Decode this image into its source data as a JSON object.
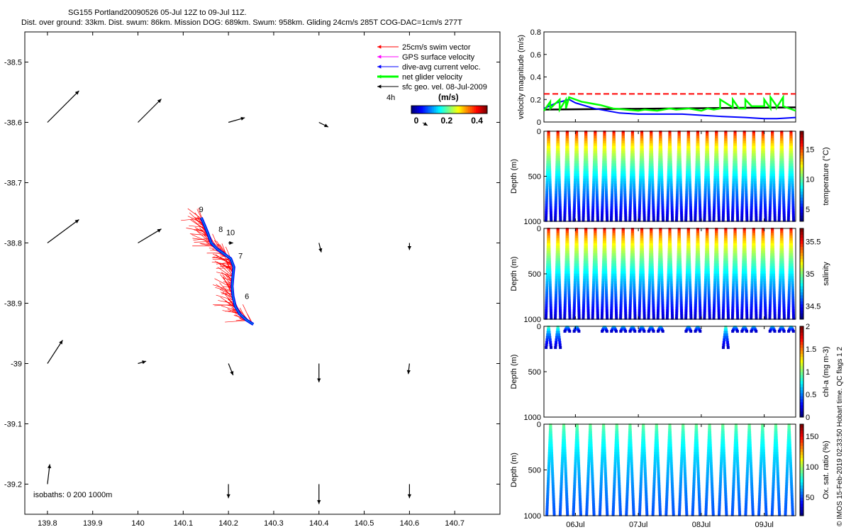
{
  "header": {
    "title": "SG155 Portland20090526 05-Jul 12Z to 09-Jul 11Z.",
    "subtitle": "Dist. over ground: 33km. Dist. swum: 86km. Mission DOG: 689km. Swum: 958km. Gliding 24cm/s 285T COG-DAC=1cm/s 277T"
  },
  "copyright": "© IMOS 15-Feb-2019 02:33:50 Hobart time. QC flags 1  2",
  "colors": {
    "swim": "#ff0000",
    "gps": "#ff00ff",
    "dac": "#0000ff",
    "net": "#00ff00",
    "geo": "#000000",
    "axis": "#000000"
  },
  "chart_data": [
    {
      "type": "scatter",
      "name": "track-map",
      "xlim": [
        139.75,
        140.8
      ],
      "ylim": [
        -39.25,
        -38.45
      ],
      "xticks": [
        139.8,
        139.9,
        140,
        140.1,
        140.2,
        140.3,
        140.4,
        140.5,
        140.6,
        140.7
      ],
      "xticklabels": [
        "139.8",
        "139.9",
        "140",
        "140.1",
        "140.2",
        "140.3",
        "140.4",
        "140.5",
        "140.6",
        "140.7"
      ],
      "yticks": [
        -38.5,
        -38.6,
        -38.7,
        -38.8,
        -38.9,
        -39,
        -39.1,
        -39.2
      ],
      "yticklabels": [
        "-38.5",
        "-38.6",
        "-38.7",
        "-38.8",
        "-38.9",
        "-39",
        "-39.1",
        "-39.2"
      ],
      "legend": {
        "entries": [
          {
            "label": "25cm/s swim vector",
            "color": "#ff0000"
          },
          {
            "label": "GPS surface velocity",
            "color": "#ff00ff"
          },
          {
            "label": "dive-avg current veloc.",
            "color": "#0000ff"
          },
          {
            "label": "net glider velocity",
            "color": "#00ff00"
          },
          {
            "label": "sfc geo. vel. 08-Jul-2009",
            "color": "#000000"
          }
        ],
        "placement": "top-right"
      },
      "time_label": "4h",
      "colorbar": {
        "title": "(m/s)",
        "ticks": [
          "0",
          "0.2",
          "0.4"
        ],
        "range": [
          0,
          0.5
        ]
      },
      "isobaths_text": "isobaths: 0   200  1000m",
      "track": [
        [
          140.255,
          -38.935
        ],
        [
          140.24,
          -38.928
        ],
        [
          140.225,
          -38.918
        ],
        [
          140.215,
          -38.905
        ],
        [
          140.21,
          -38.888
        ],
        [
          140.208,
          -38.872
        ],
        [
          140.21,
          -38.855
        ],
        [
          140.212,
          -38.84
        ],
        [
          140.205,
          -38.826
        ],
        [
          140.19,
          -38.818
        ],
        [
          140.175,
          -38.81
        ],
        [
          140.162,
          -38.8
        ],
        [
          140.155,
          -38.785
        ],
        [
          140.148,
          -38.772
        ],
        [
          140.14,
          -38.758
        ]
      ],
      "day_labels": [
        {
          "text": "6",
          "lon": 140.236,
          "lat": -38.893
        },
        {
          "text": "7",
          "lon": 140.222,
          "lat": -38.826
        },
        {
          "text": "8",
          "lon": 140.178,
          "lat": -38.782
        },
        {
          "text": "9",
          "lon": 140.135,
          "lat": -38.749
        },
        {
          "text": "10",
          "lon": 140.195,
          "lat": -38.787
        }
      ],
      "geo_vectors": [
        {
          "lon": 139.8,
          "lat": -38.6,
          "u": 0.27,
          "v": 0.27
        },
        {
          "lon": 140,
          "lat": -38.6,
          "u": 0.2,
          "v": 0.2
        },
        {
          "lon": 140.2,
          "lat": -38.6,
          "u": 0.14,
          "v": 0.04
        },
        {
          "lon": 140.4,
          "lat": -38.6,
          "u": 0.08,
          "v": -0.04
        },
        {
          "lon": 139.8,
          "lat": -38.8,
          "u": 0.27,
          "v": 0.2
        },
        {
          "lon": 140,
          "lat": -38.8,
          "u": 0.2,
          "v": 0.12
        },
        {
          "lon": 140.2,
          "lat": -38.8,
          "u": 0.04,
          "v": 0
        },
        {
          "lon": 140.4,
          "lat": -38.8,
          "u": 0.02,
          "v": -0.08
        },
        {
          "lon": 140.6,
          "lat": -38.8,
          "u": 0,
          "v": -0.06
        },
        {
          "lon": 139.8,
          "lat": -39.0,
          "u": 0.13,
          "v": 0.2
        },
        {
          "lon": 140,
          "lat": -39.0,
          "u": 0.07,
          "v": 0.02
        },
        {
          "lon": 140.2,
          "lat": -39.0,
          "u": 0.04,
          "v": -0.1
        },
        {
          "lon": 140.4,
          "lat": -39.0,
          "u": 0,
          "v": -0.16
        },
        {
          "lon": 140.6,
          "lat": -39.0,
          "u": -0.01,
          "v": -0.09
        },
        {
          "lon": 139.8,
          "lat": -39.2,
          "u": 0.02,
          "v": 0.17
        },
        {
          "lon": 140.2,
          "lat": -39.2,
          "u": 0,
          "v": -0.12
        },
        {
          "lon": 140.4,
          "lat": -39.2,
          "u": 0,
          "v": -0.17
        },
        {
          "lon": 140.6,
          "lat": -39.2,
          "u": 0,
          "v": -0.12
        }
      ]
    },
    {
      "type": "line",
      "name": "velocity-panel",
      "ylabel": "velocity magnitude (m/s)",
      "ylim": [
        0,
        0.8
      ],
      "yticks": [
        "0",
        "0.2",
        "0.4",
        "0.6",
        "0.8"
      ],
      "xlim": [
        5.5,
        9.5
      ],
      "series": [
        {
          "name": "25cm/s swim reference",
          "color": "#ff0000",
          "dashed": true,
          "x": [
            5.5,
            9.5
          ],
          "values": [
            0.25,
            0.25
          ]
        },
        {
          "name": "geostrophic",
          "color": "#000000",
          "x": [
            5.5,
            9.5
          ],
          "values": [
            0.11,
            0.13
          ]
        },
        {
          "name": "dive-avg current",
          "color": "#0000ff",
          "x": [
            5.5,
            5.7,
            5.9,
            6.0,
            6.3,
            6.7,
            7.0,
            7.3,
            7.7,
            8.0,
            8.3,
            8.7,
            9.0,
            9.2,
            9.5
          ],
          "values": [
            0.12,
            0.17,
            0.2,
            0.17,
            0.12,
            0.08,
            0.07,
            0.07,
            0.07,
            0.06,
            0.05,
            0.04,
            0.03,
            0.03,
            0.04
          ]
        },
        {
          "name": "net glider velocity",
          "color": "#00ff00",
          "x": [
            5.5,
            5.6,
            5.6,
            5.75,
            5.75,
            5.85,
            5.85,
            5.9,
            6.0,
            6.1,
            6.2,
            6.3,
            6.4,
            6.6,
            6.8,
            7.0,
            7.1,
            7.3,
            7.5,
            7.6,
            7.8,
            8.0,
            8.1,
            8.2,
            8.3,
            8.3,
            8.5,
            8.5,
            8.6,
            8.7,
            8.7,
            8.8,
            9.0,
            9.0,
            9.1,
            9.1,
            9.2,
            9.2,
            9.3,
            9.3,
            9.5
          ],
          "values": [
            0.1,
            0.18,
            0.12,
            0.2,
            0.11,
            0.2,
            0.12,
            0.22,
            0.2,
            0.18,
            0.17,
            0.16,
            0.15,
            0.12,
            0.11,
            0.1,
            0.11,
            0.1,
            0.12,
            0.11,
            0.12,
            0.1,
            0.12,
            0.11,
            0.12,
            0.2,
            0.13,
            0.2,
            0.12,
            0.12,
            0.2,
            0.14,
            0.14,
            0.2,
            0.12,
            0.22,
            0.14,
            0.13,
            0.22,
            0.14,
            0.1
          ]
        }
      ]
    },
    {
      "type": "scatter",
      "name": "temperature-section",
      "ylabel": "Depth (m)",
      "yticks": [
        "0",
        "500",
        "1000"
      ],
      "ylim": [
        0,
        1000
      ],
      "cbar_label": "temperature (°C)",
      "cbar_ticks": [
        "5",
        "10",
        "15"
      ],
      "cbar_range": [
        3,
        18
      ],
      "dives": 27,
      "max_depth": 1000,
      "surface_value": 17,
      "deep_value": 4
    },
    {
      "type": "scatter",
      "name": "salinity-section",
      "ylabel": "Depth (m)",
      "yticks": [
        "0",
        "500",
        "1000"
      ],
      "ylim": [
        0,
        1000
      ],
      "cbar_label": "salinity",
      "cbar_ticks": [
        "34.5",
        "35",
        "35.5"
      ],
      "cbar_range": [
        34.3,
        35.7
      ],
      "dives": 27,
      "max_depth": 1000,
      "surface_value": 35.6,
      "deep_value": 34.4
    },
    {
      "type": "scatter",
      "name": "chla-section",
      "ylabel": "Depth (m)",
      "yticks": [
        "0",
        "500",
        "1000"
      ],
      "ylim": [
        0,
        1000
      ],
      "cbar_label": "chl-a (mg m-3)",
      "cbar_ticks": [
        "0",
        "0.5",
        "1",
        "1.5",
        "2"
      ],
      "cbar_range": [
        0,
        2
      ],
      "dives": 27,
      "max_depth": 250,
      "surface_value": 1.0,
      "deep_value": 0.1,
      "present_dives": [
        0,
        1,
        2,
        3,
        6,
        7,
        8,
        9,
        10,
        11,
        12,
        15,
        16,
        19,
        20,
        21,
        22,
        24,
        25,
        26
      ]
    },
    {
      "type": "scatter",
      "name": "oxygen-section",
      "ylabel": "Depth (m)",
      "yticks": [
        "0",
        "500",
        "1000"
      ],
      "ylim": [
        0,
        1000
      ],
      "cbar_label": "Ox. sat. ratio (%)",
      "cbar_ticks": [
        "50",
        "100",
        "150"
      ],
      "cbar_range": [
        20,
        170
      ],
      "dives": 19,
      "max_depth": 1000,
      "surface_value": 95,
      "deep_value": 50
    },
    {
      "type": "table",
      "name": "time-axis",
      "xlim": [
        5.5,
        9.5
      ],
      "xticks": [
        6,
        7,
        8,
        9
      ],
      "xticklabels": [
        "06Jul",
        "07Jul",
        "08Jul",
        "09Jul"
      ]
    }
  ]
}
